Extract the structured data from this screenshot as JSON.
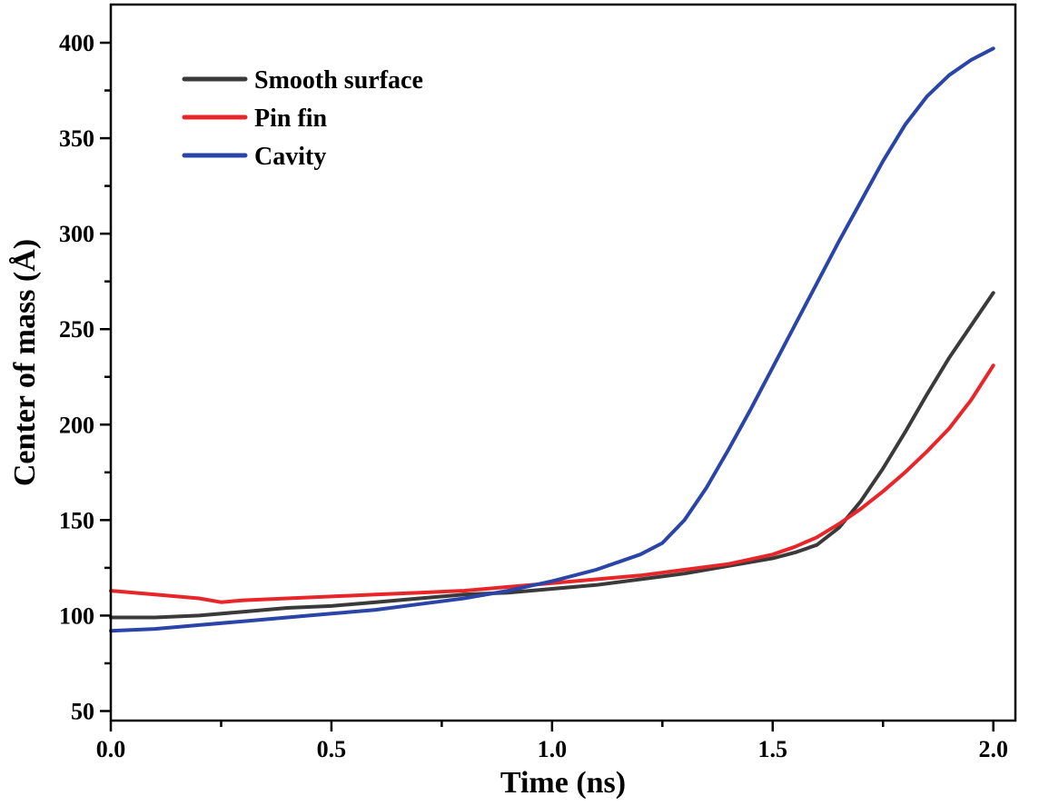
{
  "chart_data": {
    "type": "line",
    "title": "",
    "xlabel": "Time (ns)",
    "ylabel": "Center of mass (Å)",
    "xlim": [
      0.0,
      2.05
    ],
    "ylim": [
      45,
      420
    ],
    "xticks": [
      0.0,
      0.5,
      1.0,
      1.5,
      2.0
    ],
    "xtick_labels": [
      "0.0",
      "0.5",
      "1.0",
      "1.5",
      "2.0"
    ],
    "yticks": [
      50,
      100,
      150,
      200,
      250,
      300,
      350,
      400
    ],
    "ytick_labels": [
      "50",
      "100",
      "150",
      "200",
      "250",
      "300",
      "350",
      "400"
    ],
    "legend_position": "top-left",
    "grid": false,
    "series": [
      {
        "name": "Smooth surface",
        "color": "#3a3a3a",
        "x": [
          0.0,
          0.1,
          0.2,
          0.3,
          0.4,
          0.5,
          0.6,
          0.7,
          0.8,
          0.9,
          1.0,
          1.1,
          1.2,
          1.3,
          1.4,
          1.5,
          1.55,
          1.6,
          1.65,
          1.7,
          1.75,
          1.8,
          1.85,
          1.9,
          1.95,
          2.0
        ],
        "y": [
          99,
          99,
          100,
          102,
          104,
          105,
          107,
          109,
          111,
          112,
          114,
          116,
          119,
          122,
          126,
          130,
          133,
          137,
          146,
          160,
          177,
          196,
          216,
          235,
          252,
          269
        ]
      },
      {
        "name": "Pin fin",
        "color": "#e8262a",
        "x": [
          0.0,
          0.1,
          0.2,
          0.25,
          0.3,
          0.4,
          0.5,
          0.6,
          0.7,
          0.8,
          0.9,
          1.0,
          1.1,
          1.2,
          1.3,
          1.4,
          1.5,
          1.55,
          1.6,
          1.65,
          1.7,
          1.75,
          1.8,
          1.85,
          1.9,
          1.95,
          2.0
        ],
        "y": [
          113,
          111,
          109,
          107,
          108,
          109,
          110,
          111,
          112,
          113,
          115,
          117,
          119,
          121,
          124,
          127,
          132,
          136,
          141,
          148,
          156,
          165,
          175,
          186,
          198,
          213,
          231
        ]
      },
      {
        "name": "Cavity",
        "color": "#2a44a8",
        "x": [
          0.0,
          0.1,
          0.2,
          0.3,
          0.4,
          0.5,
          0.6,
          0.7,
          0.8,
          0.9,
          1.0,
          1.1,
          1.2,
          1.25,
          1.3,
          1.35,
          1.4,
          1.45,
          1.5,
          1.55,
          1.6,
          1.65,
          1.7,
          1.75,
          1.8,
          1.85,
          1.9,
          1.95,
          2.0
        ],
        "y": [
          92,
          93,
          95,
          97,
          99,
          101,
          103,
          106,
          109,
          113,
          118,
          124,
          132,
          138,
          150,
          167,
          187,
          208,
          230,
          252,
          274,
          296,
          317,
          338,
          357,
          372,
          383,
          391,
          397
        ]
      }
    ]
  }
}
